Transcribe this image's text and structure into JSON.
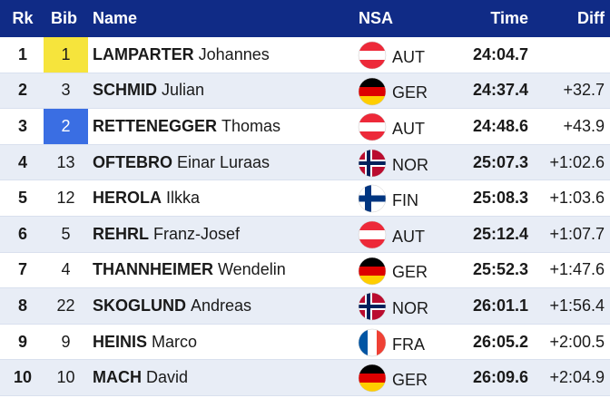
{
  "table": {
    "header": [
      "Rk",
      "Bib",
      "Name",
      "NSA",
      "Time",
      "Diff"
    ],
    "rows": [
      {
        "rank": "1",
        "bib": "1",
        "bib_highlight": "#f6e43c",
        "surname": "LAMPARTER",
        "firstname": "Johannes",
        "nsa": "AUT",
        "time": "24:04.7"
      },
      {
        "rank": "2",
        "bib": "3",
        "surname": "SCHMID",
        "firstname": "Julian",
        "nsa": "GER",
        "time": "24:37.4",
        "diff": "+32.7"
      },
      {
        "rank": "3",
        "bib": "2",
        "bib_highlight": "#3a6ee3",
        "surname": "RETTENEGGER",
        "firstname": "Thomas",
        "nsa": "AUT",
        "time": "24:48.6",
        "diff": "+43.9"
      },
      {
        "rank": "4",
        "bib": "13",
        "surname": "OFTEBRO",
        "firstname": "Einar Luraas",
        "nsa": "NOR",
        "time": "25:07.3",
        "diff": "+1:02.6"
      },
      {
        "rank": "5",
        "bib": "12",
        "surname": "HEROLA",
        "firstname": "Ilkka",
        "nsa": "FIN",
        "time": "25:08.3",
        "diff": "+1:03.6"
      },
      {
        "rank": "6",
        "bib": "5",
        "surname": "REHRL",
        "firstname": "Franz-Josef",
        "nsa": "AUT",
        "time": "25:12.4",
        "diff": "+1:07.7"
      },
      {
        "rank": "7",
        "bib": "4",
        "surname": "THANNHEIMER",
        "firstname": "Wendelin",
        "nsa": "GER",
        "time": "25:52.3",
        "diff": "+1:47.6"
      },
      {
        "rank": "8",
        "bib": "22",
        "surname": "SKOGLUND",
        "firstname": "Andreas",
        "nsa": "NOR",
        "time": "26:01.1",
        "diff": "+1:56.4"
      },
      {
        "rank": "9",
        "bib": "9",
        "surname": "HEINIS",
        "firstname": "Marco",
        "nsa": "FRA",
        "time": "26:05.2",
        "diff": "+2:00.5"
      },
      {
        "rank": "10",
        "bib": "10",
        "surname": "MACH",
        "firstname": "David",
        "nsa": "GER",
        "time": "26:09.6",
        "diff": "+2:04.9"
      }
    ]
  }
}
